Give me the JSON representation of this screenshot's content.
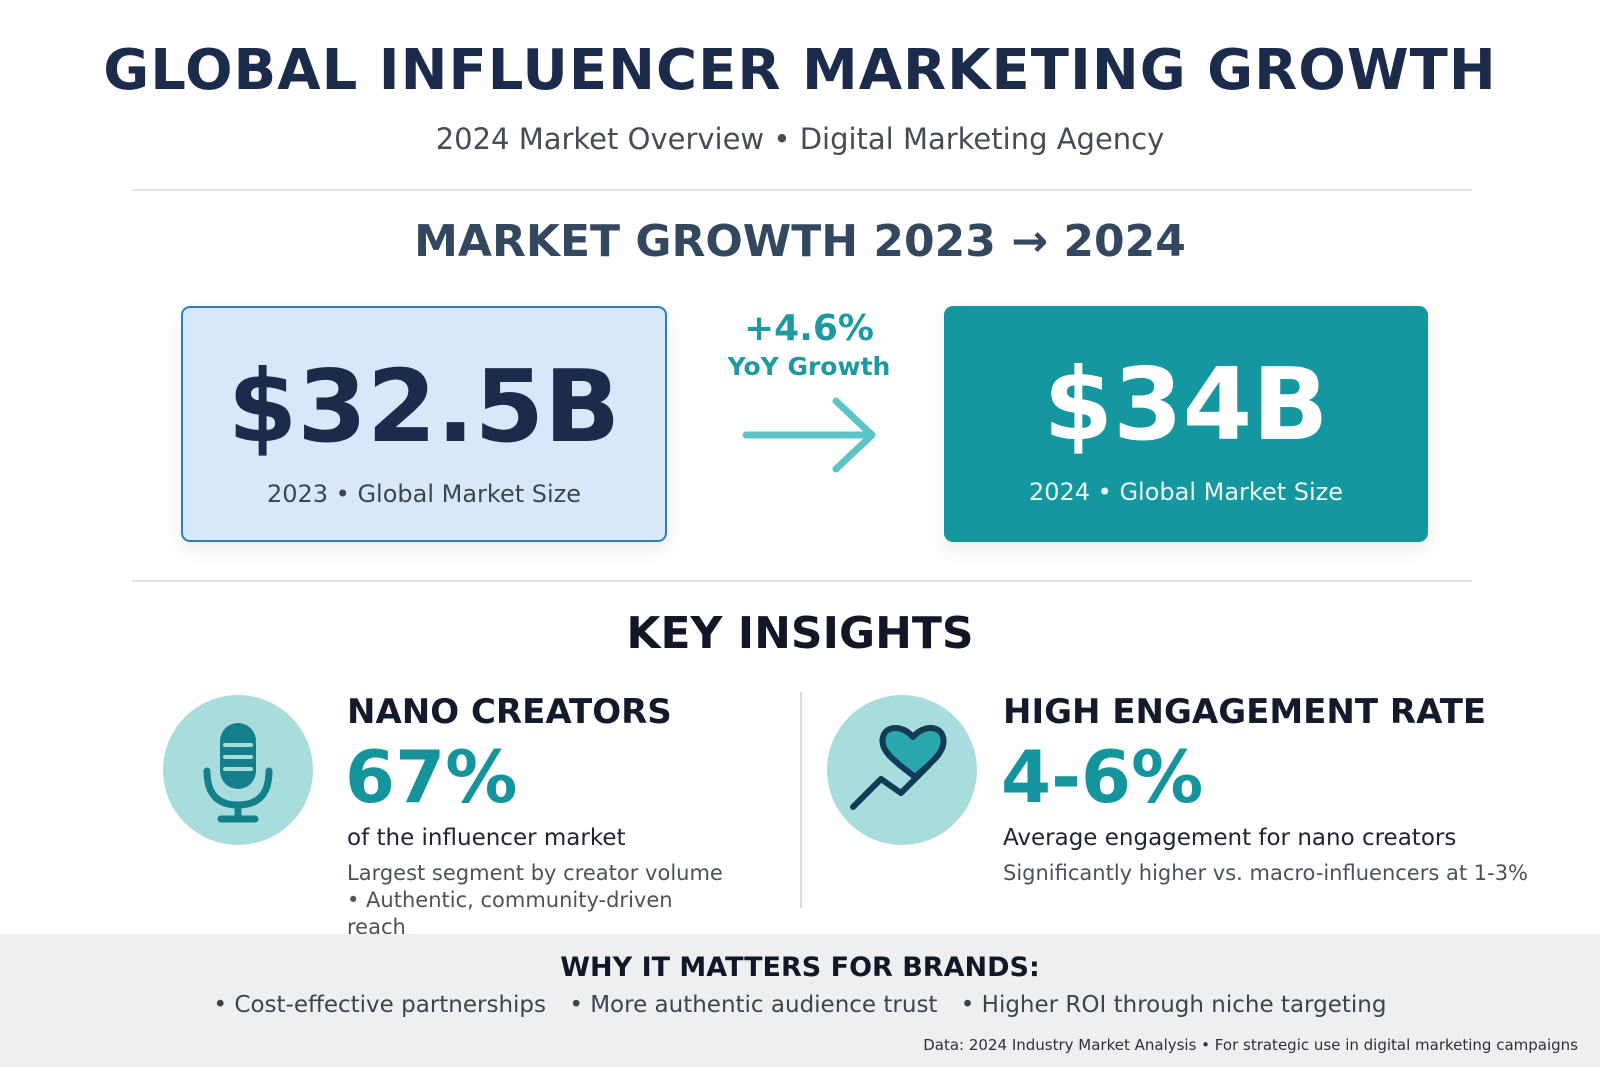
{
  "header": {
    "title": "GLOBAL INFLUENCER MARKETING GROWTH",
    "subtitle": "2024 Market Overview • Digital Marketing Agency"
  },
  "growth": {
    "heading": "MARKET GROWTH 2023 → 2024",
    "before": {
      "value": "$32.5B",
      "label": "2023 • Global Market Size"
    },
    "change": "+4.6%",
    "change_label": "YoY Growth",
    "after": {
      "value": "$34B",
      "label": "2024 • Global Market Size"
    }
  },
  "insights": {
    "heading": "KEY INSIGHTS",
    "items": [
      {
        "title": "NANO CREATORS",
        "value": "67%",
        "description": "of the influencer market",
        "note": "Largest segment by creator volume • Authentic, community-driven reach"
      },
      {
        "title": "HIGH ENGAGEMENT RATE",
        "value": "4-6%",
        "description": "Average engagement for nano creators",
        "note": "Significantly higher vs. macro-influencers at 1-3%"
      }
    ]
  },
  "brands": {
    "heading": "WHY IT MATTERS FOR BRANDS:",
    "points": [
      "• Cost-effective partnerships",
      "• More authentic audience trust",
      "• Higher ROI through niche targeting"
    ]
  },
  "footer": {
    "source": "Data: 2024 Industry Market Analysis • For strategic use in digital marketing campaigns"
  }
}
